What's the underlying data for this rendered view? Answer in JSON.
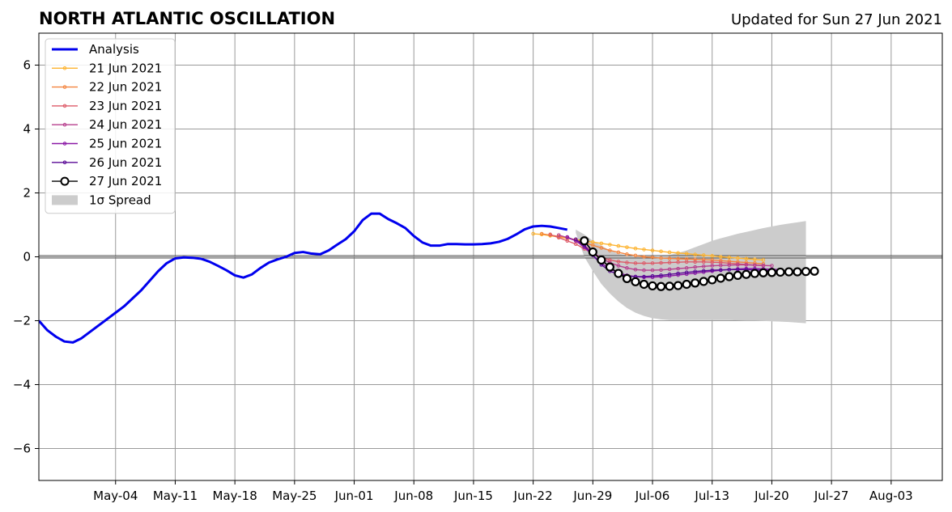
{
  "chart_data": {
    "type": "line",
    "title": "NORTH ATLANTIC OSCILLATION",
    "subtitle": "Updated for Sun 27 Jun 2021",
    "xlim": [
      "2021-04-25",
      "2021-08-09"
    ],
    "ylim": [
      -7,
      7
    ],
    "x_ticks": [
      {
        "date": "2021-05-04",
        "label": "May-04"
      },
      {
        "date": "2021-05-11",
        "label": "May-11"
      },
      {
        "date": "2021-05-18",
        "label": "May-18"
      },
      {
        "date": "2021-05-25",
        "label": "May-25"
      },
      {
        "date": "2021-06-01",
        "label": "Jun-01"
      },
      {
        "date": "2021-06-08",
        "label": "Jun-08"
      },
      {
        "date": "2021-06-15",
        "label": "Jun-15"
      },
      {
        "date": "2021-06-22",
        "label": "Jun-22"
      },
      {
        "date": "2021-06-29",
        "label": "Jun-29"
      },
      {
        "date": "2021-07-06",
        "label": "Jul-06"
      },
      {
        "date": "2021-07-13",
        "label": "Jul-13"
      },
      {
        "date": "2021-07-20",
        "label": "Jul-20"
      },
      {
        "date": "2021-07-27",
        "label": "Jul-27"
      },
      {
        "date": "2021-08-03",
        "label": "Aug-03"
      }
    ],
    "y_ticks": [
      {
        "value": 6,
        "label": "6"
      },
      {
        "value": 4,
        "label": "4"
      },
      {
        "value": 2,
        "label": "2"
      },
      {
        "value": 0,
        "label": "0"
      },
      {
        "value": -2,
        "label": "−2"
      },
      {
        "value": -4,
        "label": "−4"
      },
      {
        "value": -6,
        "label": "−6"
      }
    ],
    "grid": true,
    "legend_position": "top-left",
    "spread_label": "1σ Spread",
    "spread_color": "#cccccc",
    "spread": {
      "start": "2021-06-27",
      "upper": [
        0.85,
        0.7,
        0.5,
        0.35,
        0.2,
        0.1,
        0.05,
        0.0,
        0.0,
        0.0,
        0.02,
        0.06,
        0.12,
        0.2,
        0.3,
        0.4,
        0.5,
        0.58,
        0.65,
        0.72,
        0.78,
        0.84,
        0.9,
        0.95,
        1.0,
        1.04,
        1.08,
        1.12
      ],
      "lower": [
        0.75,
        0.0,
        -0.45,
        -0.85,
        -1.15,
        -1.4,
        -1.6,
        -1.75,
        -1.85,
        -1.92,
        -1.96,
        -1.98,
        -1.98,
        -1.98,
        -1.98,
        -1.98,
        -1.98,
        -1.98,
        -1.98,
        -1.99,
        -2.0,
        -2.0,
        -2.01,
        -2.02,
        -2.03,
        -2.04,
        -2.06,
        -2.08
      ]
    },
    "analysis": {
      "name": "Analysis",
      "color": "#0000ee",
      "start": "2021-04-25",
      "values": [
        -2.0,
        -2.3,
        -2.5,
        -2.65,
        -2.68,
        -2.55,
        -2.35,
        -2.15,
        -1.95,
        -1.75,
        -1.55,
        -1.3,
        -1.05,
        -0.75,
        -0.45,
        -0.2,
        -0.05,
        -0.02,
        -0.03,
        -0.06,
        -0.15,
        -0.28,
        -0.42,
        -0.58,
        -0.65,
        -0.55,
        -0.35,
        -0.18,
        -0.08,
        0.0,
        0.12,
        0.15,
        0.1,
        0.08,
        0.2,
        0.38,
        0.55,
        0.8,
        1.15,
        1.35,
        1.35,
        1.18,
        1.05,
        0.9,
        0.65,
        0.45,
        0.35,
        0.35,
        0.4,
        0.4,
        0.39,
        0.39,
        0.4,
        0.42,
        0.47,
        0.56,
        0.7,
        0.86,
        0.95,
        0.97,
        0.95,
        0.9,
        0.85
      ]
    },
    "series": [
      {
        "name": "21 Jun 2021",
        "color": "#fdb32f",
        "start": "2021-06-22",
        "values": [
          0.72,
          0.7,
          0.66,
          0.62,
          0.58,
          0.54,
          0.5,
          0.46,
          0.42,
          0.38,
          0.34,
          0.3,
          0.26,
          0.23,
          0.2,
          0.17,
          0.14,
          0.12,
          0.1,
          0.07,
          0.05,
          0.03,
          0.0,
          -0.02,
          -0.04,
          -0.06,
          -0.08,
          -0.1
        ]
      },
      {
        "name": "22 Jun 2021",
        "color": "#f3843f",
        "start": "2021-06-23",
        "values": [
          0.72,
          0.68,
          0.64,
          0.6,
          0.52,
          0.44,
          0.36,
          0.28,
          0.2,
          0.14,
          0.08,
          0.04,
          0.0,
          -0.02,
          -0.04,
          -0.05,
          -0.06,
          -0.07,
          -0.08,
          -0.09,
          -0.1,
          -0.12,
          -0.14,
          -0.16,
          -0.18,
          -0.2,
          -0.22
        ]
      },
      {
        "name": "23 Jun 2021",
        "color": "#dd5a68",
        "start": "2021-06-24",
        "values": [
          0.7,
          0.6,
          0.5,
          0.4,
          0.25,
          0.1,
          -0.02,
          -0.1,
          -0.15,
          -0.18,
          -0.2,
          -0.2,
          -0.2,
          -0.19,
          -0.18,
          -0.17,
          -0.16,
          -0.16,
          -0.16,
          -0.17,
          -0.18,
          -0.2,
          -0.22,
          -0.24,
          -0.26,
          -0.28
        ]
      },
      {
        "name": "24 Jun 2021",
        "color": "#b73f8e",
        "start": "2021-06-25",
        "values": [
          0.68,
          0.6,
          0.5,
          0.35,
          0.15,
          -0.05,
          -0.18,
          -0.28,
          -0.35,
          -0.4,
          -0.42,
          -0.42,
          -0.41,
          -0.39,
          -0.37,
          -0.35,
          -0.32,
          -0.3,
          -0.28,
          -0.27,
          -0.26,
          -0.25,
          -0.25,
          -0.26,
          -0.27,
          -0.28
        ]
      },
      {
        "name": "25 Jun 2021",
        "color": "#8b18a6",
        "start": "2021-06-26",
        "values": [
          0.62,
          0.5,
          0.3,
          0.05,
          -0.2,
          -0.38,
          -0.5,
          -0.58,
          -0.62,
          -0.64,
          -0.64,
          -0.62,
          -0.6,
          -0.57,
          -0.54,
          -0.51,
          -0.48,
          -0.45,
          -0.42,
          -0.4,
          -0.38,
          -0.37,
          -0.37,
          -0.38,
          -0.39,
          -0.4
        ]
      },
      {
        "name": "26 Jun 2021",
        "color": "#5a0a96",
        "start": "2021-06-27",
        "values": [
          0.55,
          0.35,
          0.05,
          -0.25,
          -0.45,
          -0.55,
          -0.6,
          -0.62,
          -0.62,
          -0.6,
          -0.58,
          -0.55,
          -0.52,
          -0.49,
          -0.46,
          -0.44,
          -0.42,
          -0.41,
          -0.4,
          -0.4,
          -0.4,
          -0.41,
          -0.42,
          -0.43,
          -0.44,
          -0.45
        ]
      },
      {
        "name": "27 Jun 2021",
        "color": "#000000",
        "start": "2021-06-28",
        "values": [
          0.5,
          0.15,
          -0.1,
          -0.32,
          -0.52,
          -0.68,
          -0.78,
          -0.86,
          -0.91,
          -0.93,
          -0.92,
          -0.9,
          -0.86,
          -0.82,
          -0.77,
          -0.72,
          -0.67,
          -0.62,
          -0.58,
          -0.55,
          -0.52,
          -0.5,
          -0.49,
          -0.48,
          -0.47,
          -0.47,
          -0.46,
          -0.45
        ]
      }
    ]
  }
}
